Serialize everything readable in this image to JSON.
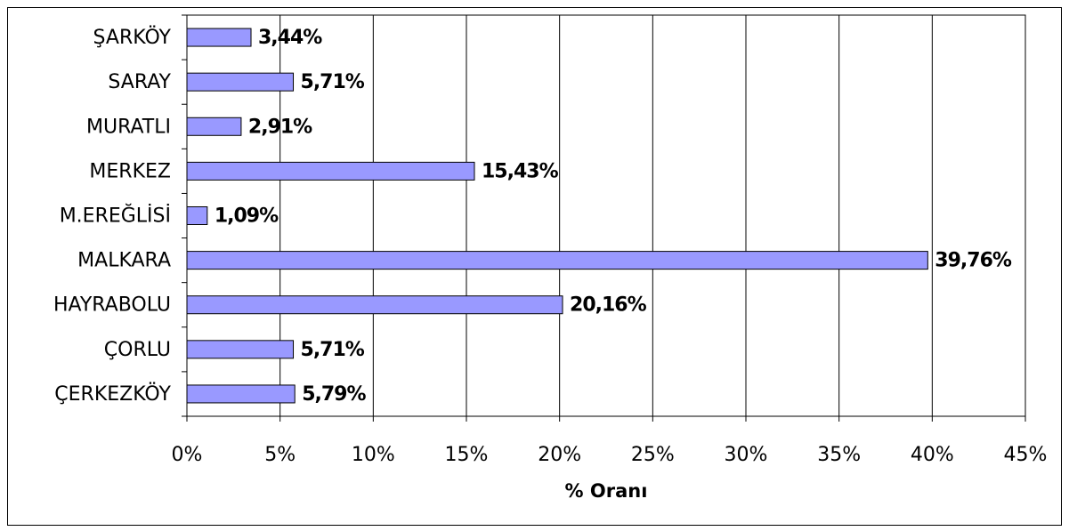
{
  "chart_data": {
    "type": "bar",
    "orientation": "horizontal",
    "x_label": "% Oranı",
    "categories": [
      "ŞARKÖY",
      "SARAY",
      "MURATLI",
      "MERKEZ",
      "M.EREĞLİSİ",
      "MALKARA",
      "HAYRABOLU",
      "ÇORLU",
      "ÇERKEZKÖY"
    ],
    "values": [
      3.44,
      5.71,
      2.91,
      15.43,
      1.09,
      39.76,
      20.16,
      5.71,
      5.79
    ],
    "value_labels": [
      "3,44%",
      "5,71%",
      "2,91%",
      "15,43%",
      "1,09%",
      "39,76%",
      "20,16%",
      "5,71%",
      "5,79%"
    ],
    "color": "#9999ff",
    "xlim": [
      0,
      45
    ],
    "xticks": [
      {
        "value": 0,
        "label": "0%"
      },
      {
        "value": 5,
        "label": "5%"
      },
      {
        "value": 10,
        "label": "10%"
      },
      {
        "value": 15,
        "label": "15%"
      },
      {
        "value": 20,
        "label": "20%"
      },
      {
        "value": 25,
        "label": "25%"
      },
      {
        "value": 30,
        "label": "30%"
      },
      {
        "value": 35,
        "label": "35%"
      },
      {
        "value": 40,
        "label": "40%"
      },
      {
        "value": 45,
        "label": "45%"
      }
    ],
    "grid": true
  }
}
